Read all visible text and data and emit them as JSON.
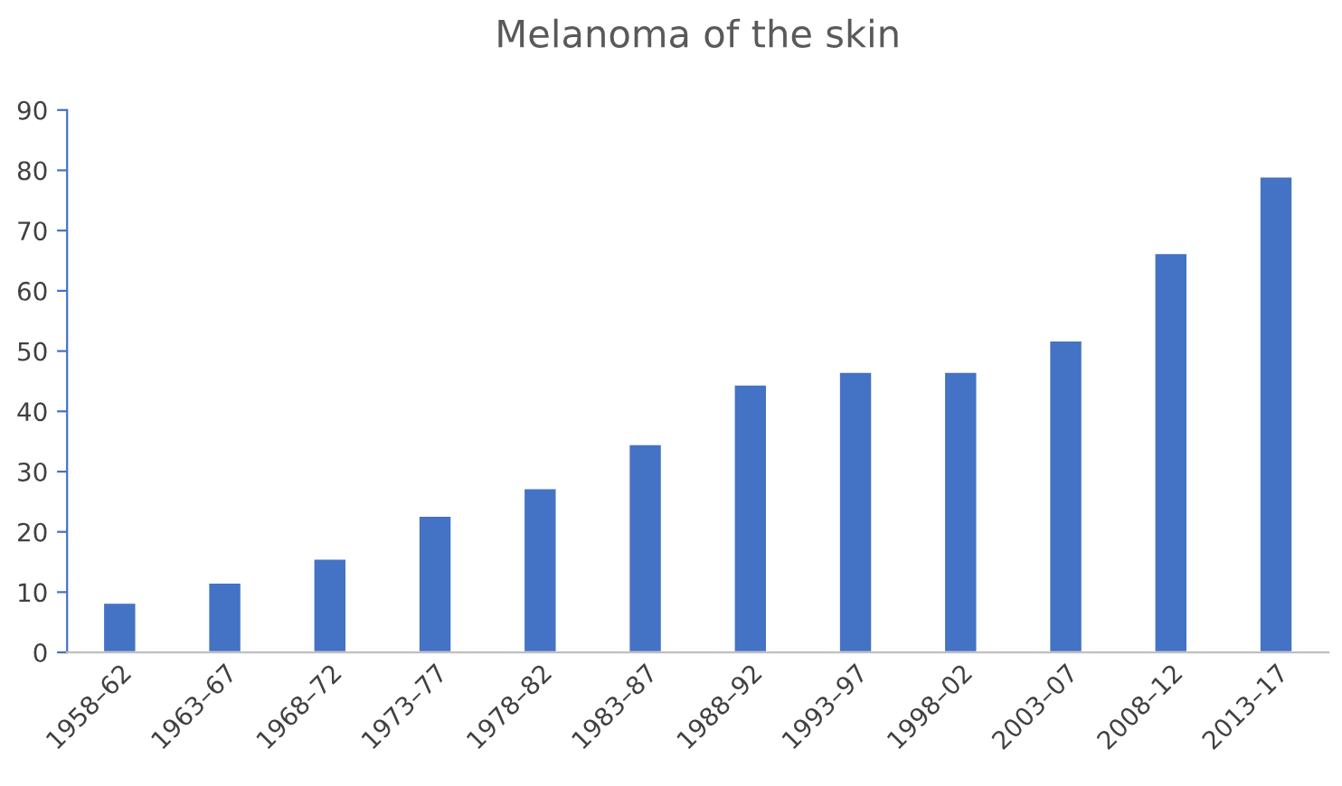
{
  "chart_data": {
    "type": "bar",
    "title": "Melanoma of the skin",
    "categories": [
      "1958–62",
      "1963–67",
      "1968–72",
      "1973–77",
      "1978–82",
      "1983–87",
      "1988–92",
      "1993–97",
      "1998–02",
      "2003–07",
      "2008–12",
      "2013–17"
    ],
    "values": [
      8.3,
      11.6,
      15.6,
      22.7,
      27.3,
      34.6,
      44.5,
      46.6,
      46.6,
      51.8,
      66.3,
      79
    ],
    "color": "#4472c4",
    "ylim": [
      0,
      90
    ],
    "yticks": [
      0,
      10,
      20,
      30,
      40,
      50,
      60,
      70,
      80,
      90
    ],
    "grid": false
  }
}
